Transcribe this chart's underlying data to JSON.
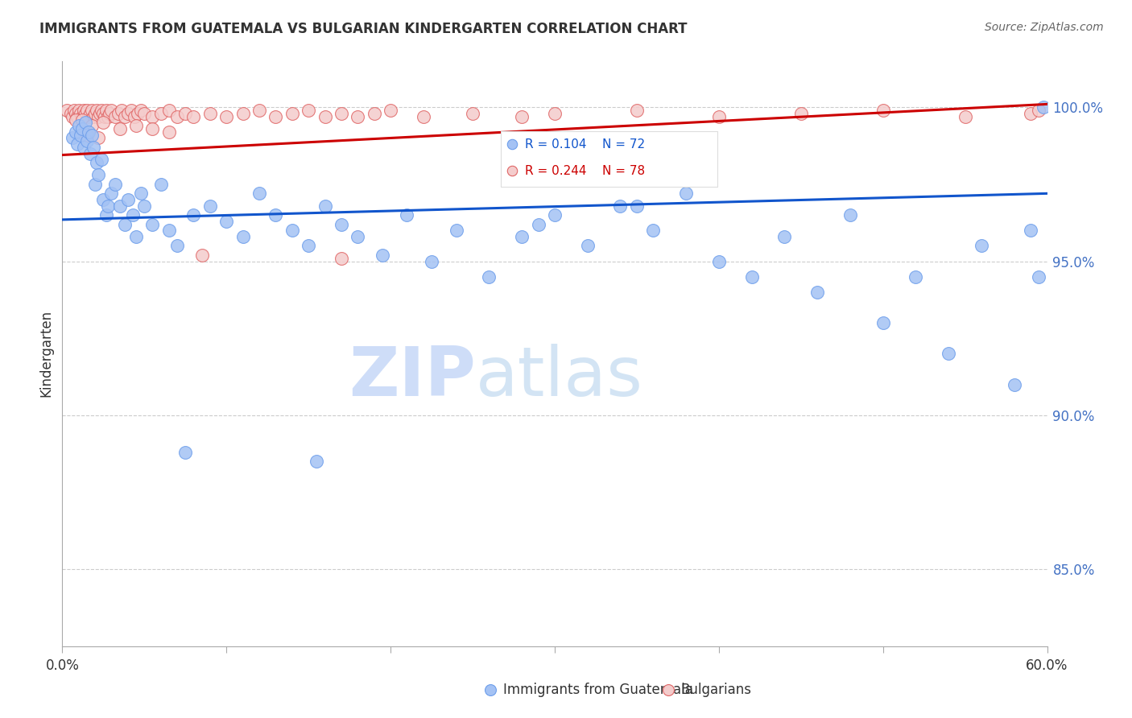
{
  "title": "IMMIGRANTS FROM GUATEMALA VS BULGARIAN KINDERGARTEN CORRELATION CHART",
  "source": "Source: ZipAtlas.com",
  "ylabel": "Kindergarten",
  "ytick_labels": [
    "100.0%",
    "95.0%",
    "90.0%",
    "85.0%"
  ],
  "ytick_values": [
    1.0,
    0.95,
    0.9,
    0.85
  ],
  "xlim": [
    0.0,
    0.6
  ],
  "ylim": [
    0.825,
    1.015
  ],
  "legend_blue_r": "R = 0.104",
  "legend_blue_n": "N = 72",
  "legend_pink_r": "R = 0.244",
  "legend_pink_n": "N = 78",
  "legend_label_blue": "Immigrants from Guatemala",
  "legend_label_pink": "Bulgarians",
  "color_blue": "#a4c2f4",
  "color_pink": "#f4cccc",
  "edge_blue": "#6d9eeb",
  "edge_pink": "#e06666",
  "trendline_blue": "#1155cc",
  "trendline_pink": "#cc0000",
  "blue_trendline_y0": 0.9635,
  "blue_trendline_y1": 0.972,
  "pink_trendline_y0": 0.9845,
  "pink_trendline_y1": 1.001,
  "watermark_zip": "ZIP",
  "watermark_atlas": "atlas",
  "watermark_color_zip": "#c9daf8",
  "watermark_color_atlas": "#cfe2f3",
  "background_color": "#ffffff",
  "grid_color": "#cccccc",
  "blue_x": [
    0.006,
    0.008,
    0.009,
    0.01,
    0.011,
    0.012,
    0.013,
    0.014,
    0.015,
    0.016,
    0.017,
    0.018,
    0.019,
    0.02,
    0.021,
    0.022,
    0.024,
    0.025,
    0.027,
    0.028,
    0.03,
    0.032,
    0.035,
    0.038,
    0.04,
    0.043,
    0.045,
    0.048,
    0.05,
    0.055,
    0.06,
    0.065,
    0.07,
    0.08,
    0.09,
    0.1,
    0.11,
    0.12,
    0.13,
    0.14,
    0.15,
    0.16,
    0.17,
    0.18,
    0.195,
    0.21,
    0.225,
    0.24,
    0.26,
    0.28,
    0.3,
    0.32,
    0.34,
    0.36,
    0.38,
    0.4,
    0.42,
    0.44,
    0.46,
    0.48,
    0.5,
    0.52,
    0.54,
    0.56,
    0.58,
    0.59,
    0.595,
    0.598,
    0.35,
    0.29,
    0.155,
    0.075
  ],
  "blue_y": [
    0.99,
    0.992,
    0.988,
    0.994,
    0.991,
    0.993,
    0.987,
    0.995,
    0.989,
    0.992,
    0.985,
    0.991,
    0.987,
    0.975,
    0.982,
    0.978,
    0.983,
    0.97,
    0.965,
    0.968,
    0.972,
    0.975,
    0.968,
    0.962,
    0.97,
    0.965,
    0.958,
    0.972,
    0.968,
    0.962,
    0.975,
    0.96,
    0.955,
    0.965,
    0.968,
    0.963,
    0.958,
    0.972,
    0.965,
    0.96,
    0.955,
    0.968,
    0.962,
    0.958,
    0.952,
    0.965,
    0.95,
    0.96,
    0.945,
    0.958,
    0.965,
    0.955,
    0.968,
    0.96,
    0.972,
    0.95,
    0.945,
    0.958,
    0.94,
    0.965,
    0.93,
    0.945,
    0.92,
    0.955,
    0.91,
    0.96,
    0.945,
    1.0,
    0.968,
    0.962,
    0.885,
    0.888
  ],
  "pink_x": [
    0.003,
    0.005,
    0.006,
    0.007,
    0.008,
    0.009,
    0.01,
    0.011,
    0.012,
    0.013,
    0.014,
    0.015,
    0.016,
    0.017,
    0.018,
    0.019,
    0.02,
    0.021,
    0.022,
    0.023,
    0.024,
    0.025,
    0.026,
    0.027,
    0.028,
    0.029,
    0.03,
    0.032,
    0.034,
    0.036,
    0.038,
    0.04,
    0.042,
    0.044,
    0.046,
    0.048,
    0.05,
    0.055,
    0.06,
    0.065,
    0.07,
    0.075,
    0.08,
    0.09,
    0.1,
    0.11,
    0.12,
    0.13,
    0.14,
    0.15,
    0.16,
    0.17,
    0.18,
    0.19,
    0.2,
    0.22,
    0.25,
    0.28,
    0.3,
    0.35,
    0.4,
    0.45,
    0.5,
    0.55,
    0.59,
    0.595,
    0.008,
    0.012,
    0.018,
    0.025,
    0.035,
    0.045,
    0.055,
    0.065,
    0.015,
    0.022,
    0.17,
    0.085
  ],
  "pink_y": [
    0.999,
    0.998,
    0.997,
    0.999,
    0.998,
    0.997,
    0.999,
    0.998,
    0.997,
    0.999,
    0.998,
    0.999,
    0.997,
    0.998,
    0.999,
    0.997,
    0.998,
    0.999,
    0.997,
    0.998,
    0.999,
    0.998,
    0.997,
    0.999,
    0.997,
    0.998,
    0.999,
    0.997,
    0.998,
    0.999,
    0.997,
    0.998,
    0.999,
    0.997,
    0.998,
    0.999,
    0.998,
    0.997,
    0.998,
    0.999,
    0.997,
    0.998,
    0.997,
    0.998,
    0.997,
    0.998,
    0.999,
    0.997,
    0.998,
    0.999,
    0.997,
    0.998,
    0.997,
    0.998,
    0.999,
    0.997,
    0.998,
    0.997,
    0.998,
    0.999,
    0.997,
    0.998,
    0.999,
    0.997,
    0.998,
    0.999,
    0.996,
    0.996,
    0.994,
    0.995,
    0.993,
    0.994,
    0.993,
    0.992,
    0.991,
    0.99,
    0.951,
    0.952
  ]
}
